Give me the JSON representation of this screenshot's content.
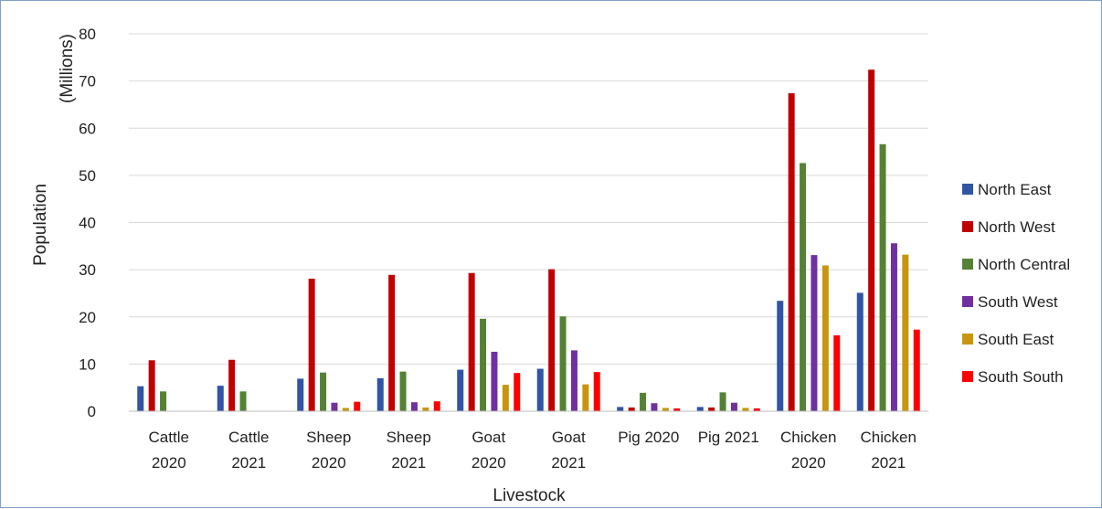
{
  "chart_data": {
    "type": "bar",
    "title": "",
    "xlabel": "Livestock",
    "ylabel_part1": "Population",
    "ylabel_part2": "(Millions)",
    "ylim": [
      0,
      80
    ],
    "yticks": [
      0,
      10,
      20,
      30,
      40,
      50,
      60,
      70,
      80
    ],
    "grid": true,
    "legend_position": "right",
    "categories": [
      [
        "Cattle",
        "2020"
      ],
      [
        "Cattle",
        "2021"
      ],
      [
        "Sheep",
        "2020"
      ],
      [
        "Sheep",
        "2021"
      ],
      [
        "Goat",
        "2020"
      ],
      [
        "Goat",
        "2021"
      ],
      [
        "Pig 2020"
      ],
      [
        "Pig 2021"
      ],
      [
        "Chicken",
        "2020"
      ],
      [
        "Chicken",
        "2021"
      ]
    ],
    "series": [
      {
        "name": "North East",
        "color": "#2f55a4",
        "values": [
          5.3,
          5.4,
          6.9,
          7.0,
          8.8,
          9.0,
          0.9,
          0.9,
          23.4,
          25.1
        ]
      },
      {
        "name": "North West",
        "color": "#c00000",
        "values": [
          10.8,
          10.9,
          28.1,
          28.9,
          29.3,
          30.1,
          0.8,
          0.8,
          67.4,
          72.4
        ]
      },
      {
        "name": "North Central",
        "color": "#548235",
        "values": [
          4.2,
          4.2,
          8.2,
          8.4,
          19.6,
          20.1,
          3.9,
          4.0,
          52.6,
          56.6
        ]
      },
      {
        "name": "South West",
        "color": "#7030a0",
        "values": [
          0,
          0,
          1.8,
          1.9,
          12.6,
          12.9,
          1.7,
          1.8,
          33.1,
          35.6
        ]
      },
      {
        "name": "South East",
        "color": "#c8960c",
        "values": [
          0,
          0,
          0.7,
          0.8,
          5.6,
          5.7,
          0.7,
          0.7,
          30.9,
          33.2
        ]
      },
      {
        "name": "South South",
        "color": "#ff0000",
        "values": [
          0,
          0,
          2.0,
          2.1,
          8.1,
          8.3,
          0.6,
          0.6,
          16.1,
          17.3
        ]
      }
    ]
  }
}
